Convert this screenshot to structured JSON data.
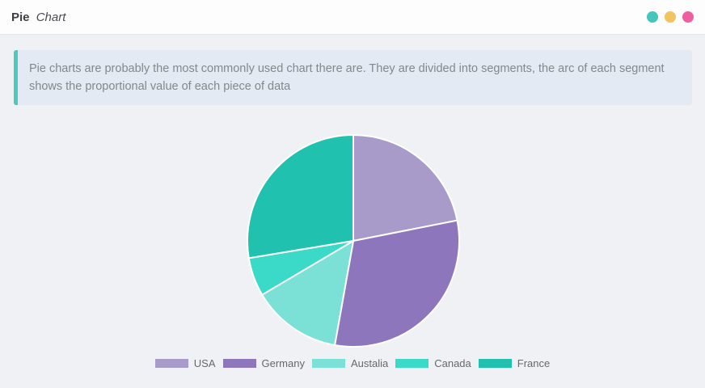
{
  "page": {
    "background": "#eff1f5"
  },
  "header": {
    "title_bold": "Pie",
    "title_italic": "Chart",
    "dots": [
      {
        "name": "teal",
        "color": "#45c5bc"
      },
      {
        "name": "yellow",
        "color": "#f0c45e"
      },
      {
        "name": "pink",
        "color": "#ee5fa0"
      }
    ]
  },
  "infobox": {
    "text": "Pie charts are probably the most commonly used chart there are. They are divided into segments, the arc of each segment shows the proportional value of each piece of data",
    "accent_color": "#4dc9c0",
    "background": "#e3eaf3"
  },
  "chart_data": {
    "type": "pie",
    "labels": [
      "USA",
      "Germany",
      "Austalia",
      "Canada",
      "France"
    ],
    "values_percent": [
      21.9,
      30.9,
      13.7,
      5.9,
      27.6
    ],
    "colors": [
      "#a89bc9",
      "#8e76bc",
      "#7be0d6",
      "#3bd9c8",
      "#20c1ae"
    ],
    "start_angle_deg": 0,
    "direction": "clockwise",
    "slice_border": {
      "color": "#ffffff",
      "width": 2
    },
    "legend_position": "bottom"
  }
}
